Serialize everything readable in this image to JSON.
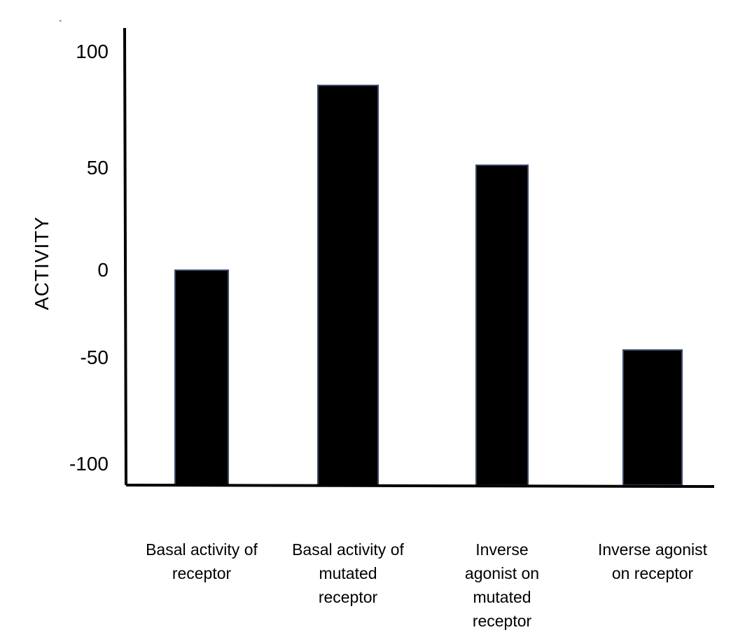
{
  "chart_data": {
    "type": "bar",
    "categories": [
      "Basal activity of\nreceptor",
      "Basal activity of\nmutated\nreceptor",
      "Inverse\nagonist on\nmutated\nreceptor",
      "Inverse agonist\non receptor"
    ],
    "values": [
      0,
      88,
      50,
      -38
    ],
    "ylabel": "ACTIVITY",
    "xlabel": "",
    "title": "",
    "y_ticks": [
      100,
      50,
      0,
      -50,
      -100
    ],
    "ylim": [
      -106,
      112
    ],
    "baseline": -106,
    "bar_color": "#000000",
    "bar_edge_color": "#3b4a6b",
    "grid": false,
    "legend": "none"
  },
  "stray_mark": "`"
}
